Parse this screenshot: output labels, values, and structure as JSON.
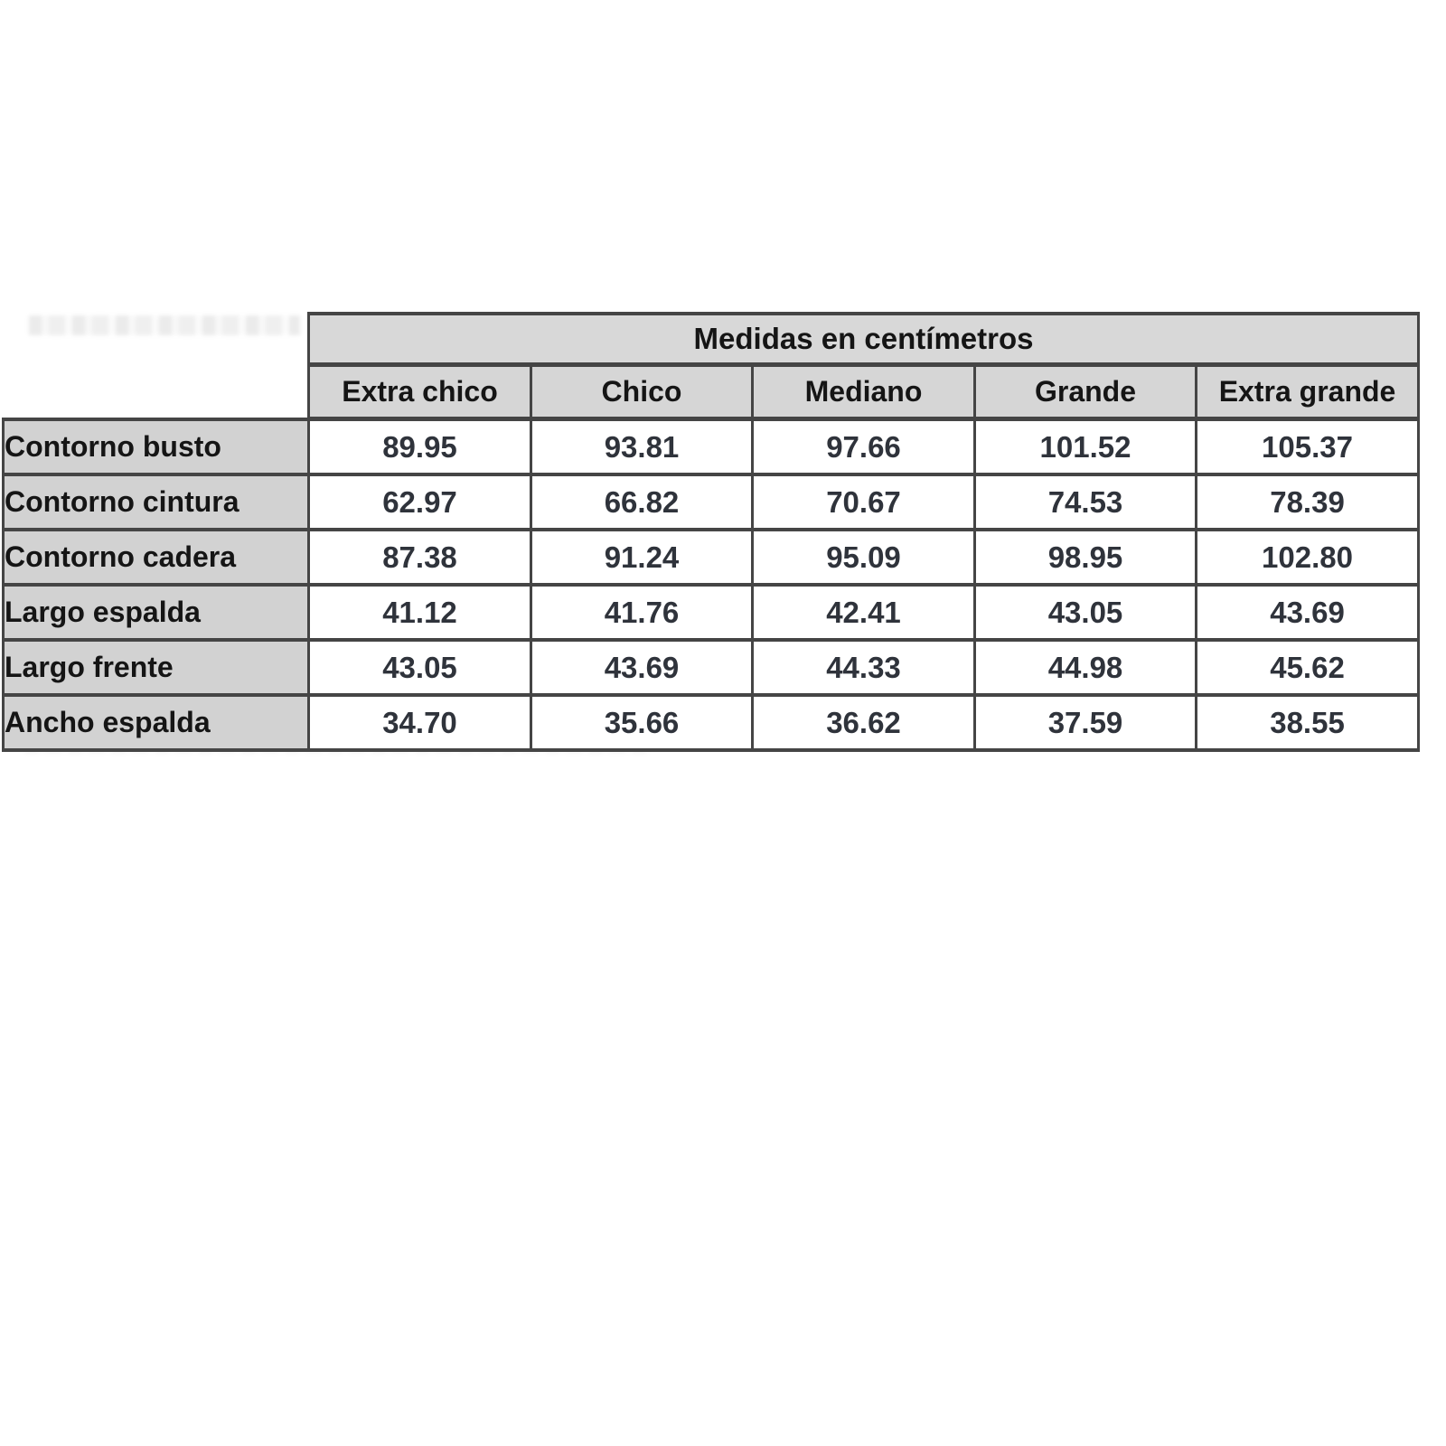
{
  "table": {
    "title": "Medidas en centímetros",
    "columns": [
      "Extra chico",
      "Chico",
      "Mediano",
      "Grande",
      "Extra grande"
    ],
    "rows": [
      {
        "label": "Contorno busto",
        "values": [
          "89.95",
          "93.81",
          "97.66",
          "101.52",
          "105.37"
        ]
      },
      {
        "label": "Contorno cintura",
        "values": [
          "62.97",
          "66.82",
          "70.67",
          "74.53",
          "78.39"
        ]
      },
      {
        "label": "Contorno cadera",
        "values": [
          "87.38",
          "91.24",
          "95.09",
          "98.95",
          "102.80"
        ]
      },
      {
        "label": "Largo espalda",
        "values": [
          "41.12",
          "41.76",
          "42.41",
          "43.05",
          "43.69"
        ]
      },
      {
        "label": "Largo frente",
        "values": [
          "43.05",
          "43.69",
          "44.33",
          "44.98",
          "45.62"
        ]
      },
      {
        "label": "Ancho espalda",
        "values": [
          "34.70",
          "35.66",
          "36.62",
          "37.59",
          "38.55"
        ]
      }
    ],
    "colors": {
      "header_bg": "#d6d6d6",
      "label_bg": "#d2d2d2",
      "cell_bg": "#ffffff",
      "border": "#454545",
      "header_text": "#151515",
      "value_text": "#2f333b"
    }
  },
  "chart_data": {
    "type": "table",
    "title": "Medidas en centímetros",
    "columns": [
      "Extra chico",
      "Chico",
      "Mediano",
      "Grande",
      "Extra grande"
    ],
    "row_labels": [
      "Contorno busto",
      "Contorno cintura",
      "Contorno cadera",
      "Largo espalda",
      "Largo frente",
      "Ancho espalda"
    ],
    "values": [
      [
        89.95,
        93.81,
        97.66,
        101.52,
        105.37
      ],
      [
        62.97,
        66.82,
        70.67,
        74.53,
        78.39
      ],
      [
        87.38,
        91.24,
        95.09,
        98.95,
        102.8
      ],
      [
        41.12,
        41.76,
        42.41,
        43.05,
        43.69
      ],
      [
        43.05,
        43.69,
        44.33,
        44.98,
        45.62
      ],
      [
        34.7,
        35.66,
        36.62,
        37.59,
        38.55
      ]
    ],
    "units": "cm"
  }
}
